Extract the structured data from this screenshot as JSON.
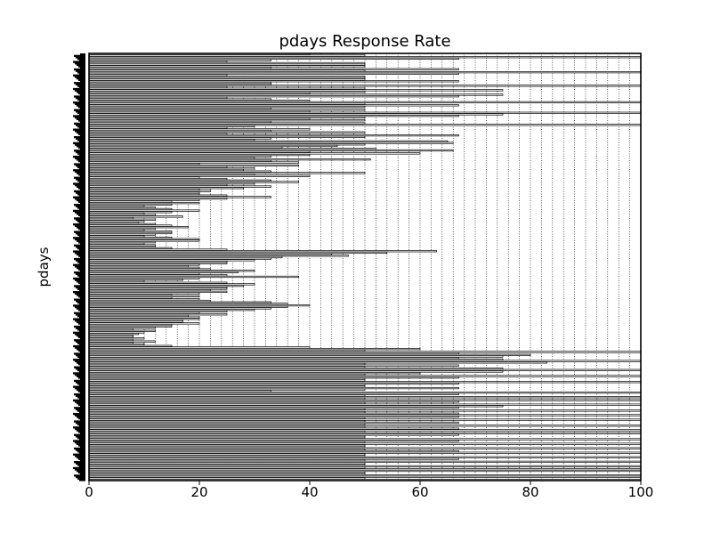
{
  "chart_data": {
    "type": "bar",
    "orientation": "horizontal",
    "title": "pdays Response Rate",
    "xlabel": "",
    "ylabel": "pdays",
    "xlim": [
      0,
      100
    ],
    "xticks": [
      "0",
      "20",
      "40",
      "60",
      "80",
      "100"
    ],
    "grid": true,
    "series": [
      {
        "name": "response rate",
        "values": [
          40,
          50,
          100,
          67,
          33,
          25,
          50,
          50,
          50,
          33,
          67,
          50,
          100,
          67,
          25,
          50,
          50,
          50,
          67,
          33,
          33,
          100,
          25,
          50,
          75,
          50,
          40,
          75,
          67,
          25,
          33,
          40,
          100,
          50,
          67,
          50,
          33,
          50,
          40,
          100,
          75,
          67,
          50,
          40,
          50,
          33,
          50,
          100,
          30,
          25,
          40,
          33,
          50,
          25,
          67,
          50,
          33,
          30,
          65,
          66,
          50,
          45,
          35,
          52,
          66,
          40,
          60,
          40,
          33,
          30,
          51,
          33,
          38,
          20,
          38,
          25,
          30,
          28,
          33,
          50,
          30,
          40,
          20,
          25,
          33,
          38,
          30,
          25,
          33,
          28,
          20,
          22,
          20,
          20,
          25,
          33,
          25,
          20,
          15,
          20,
          15,
          10,
          12,
          15,
          20,
          15,
          10,
          12,
          17,
          8,
          12,
          10,
          9,
          12,
          15,
          18,
          12,
          10,
          15,
          15,
          12,
          10,
          15,
          20,
          20,
          12,
          10,
          12,
          12,
          15,
          25,
          63,
          54,
          44,
          47,
          35,
          33,
          30,
          25,
          25,
          20,
          18,
          20,
          22,
          30,
          27,
          20,
          25,
          38,
          20,
          17,
          10,
          25,
          30,
          28,
          25,
          25,
          22,
          25,
          20,
          15,
          20,
          15,
          20,
          22,
          33,
          36,
          40,
          36,
          33,
          30,
          25,
          20,
          25,
          18,
          20,
          20,
          17,
          17,
          20,
          15,
          15,
          12,
          8,
          12,
          10,
          9,
          8,
          8,
          10,
          8,
          12,
          8,
          10,
          15,
          40,
          60,
          50,
          100,
          67,
          80,
          75,
          67,
          75,
          100,
          83,
          50,
          67,
          50,
          75,
          100,
          75,
          60,
          50,
          100,
          67,
          50,
          50,
          100,
          67,
          50,
          50,
          67,
          50,
          33,
          100,
          67,
          50,
          100,
          50,
          100,
          67,
          50,
          100,
          75,
          67,
          50,
          100,
          50,
          67,
          100,
          67,
          50,
          100,
          50,
          67,
          50,
          100,
          50,
          67,
          100,
          50,
          100,
          67,
          50,
          50,
          100,
          67,
          50,
          100,
          50,
          50,
          100,
          50,
          67,
          100,
          50,
          50,
          100,
          67,
          50,
          100,
          50,
          50,
          100,
          50,
          100,
          100,
          50,
          50,
          100,
          100,
          50,
          100
        ]
      }
    ]
  }
}
